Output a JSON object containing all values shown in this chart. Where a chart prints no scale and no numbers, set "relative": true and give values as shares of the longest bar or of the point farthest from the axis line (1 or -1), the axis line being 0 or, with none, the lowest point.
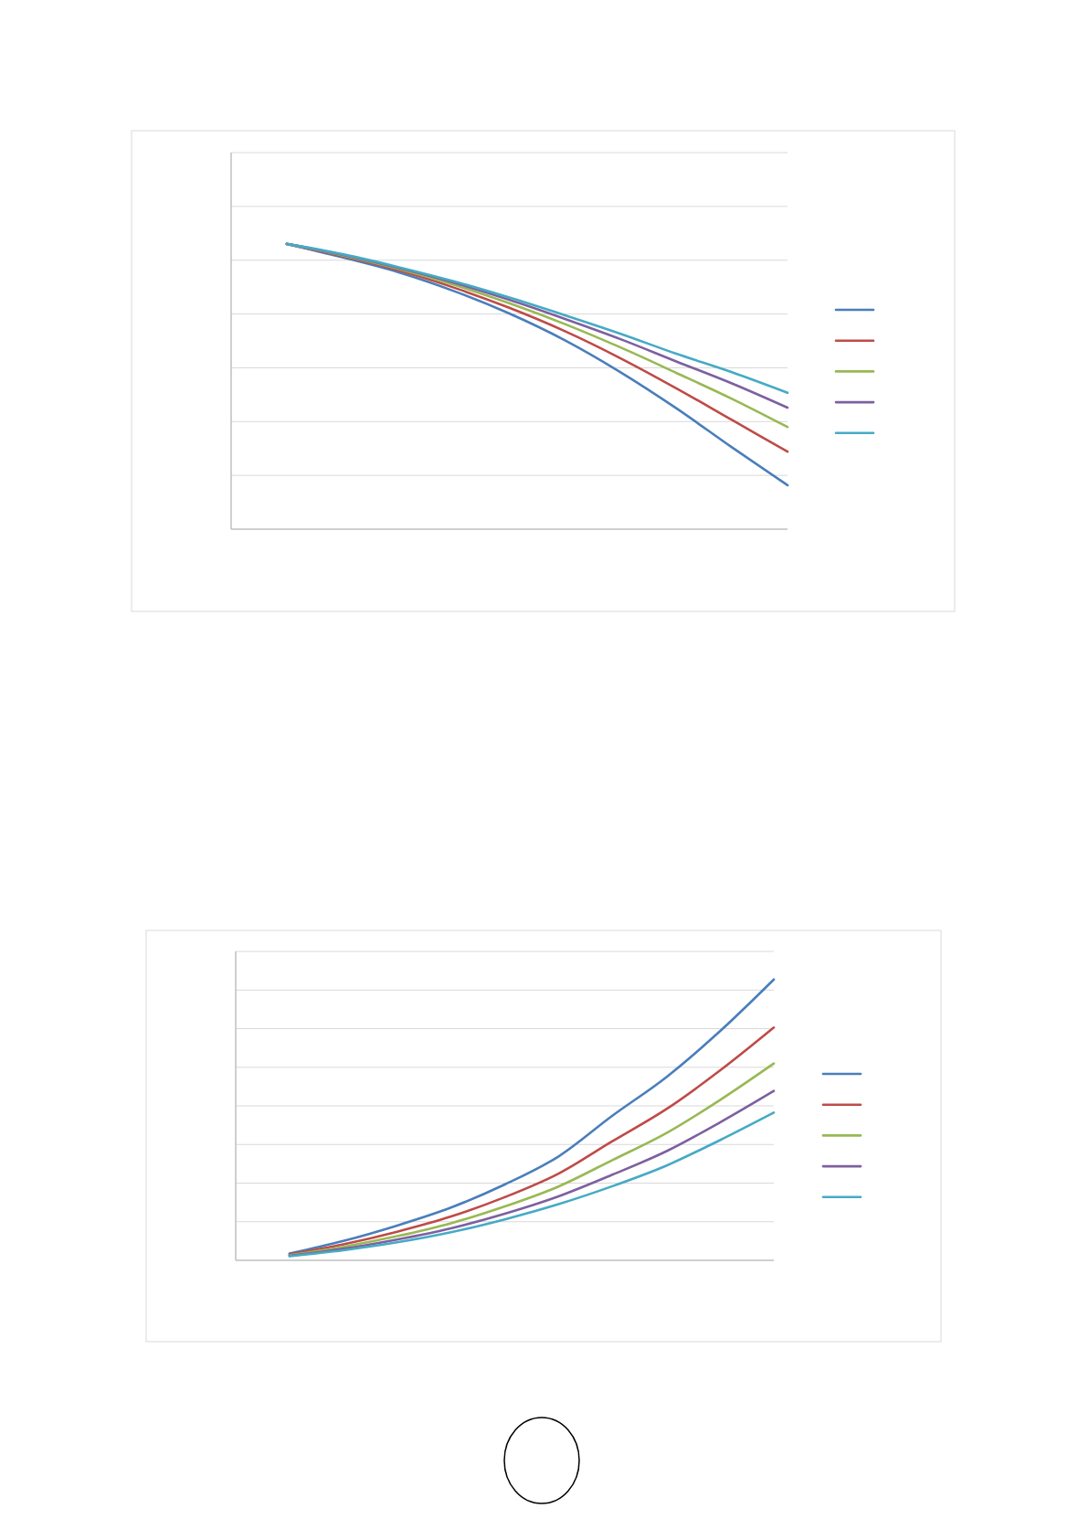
{
  "chart_data": [
    {
      "type": "line",
      "relative": true,
      "grid": "y",
      "categories": [
        null,
        null,
        null,
        null,
        null,
        null,
        null,
        null,
        null,
        null
      ],
      "series": [
        {
          "color": "#4a7ebb",
          "values": [
            1,
            0.953,
            0.901,
            0.835,
            0.756,
            0.662,
            0.55,
            0.424,
            0.287,
            0.154
          ]
        },
        {
          "color": "#be4b48",
          "values": [
            1,
            0.957,
            0.908,
            0.847,
            0.776,
            0.694,
            0.599,
            0.494,
            0.383,
            0.272
          ]
        },
        {
          "color": "#98b954",
          "values": [
            1,
            0.96,
            0.913,
            0.857,
            0.792,
            0.719,
            0.637,
            0.548,
            0.457,
            0.358
          ]
        },
        {
          "color": "#7d60a0",
          "values": [
            1,
            0.962,
            0.916,
            0.864,
            0.804,
            0.737,
            0.666,
            0.588,
            0.511,
            0.426
          ]
        },
        {
          "color": "#46aac5",
          "values": [
            1,
            0.964,
            0.919,
            0.869,
            0.812,
            0.75,
            0.685,
            0.615,
            0.55,
            0.478
          ]
        }
      ]
    },
    {
      "type": "line",
      "relative": true,
      "grid": "y",
      "categories": [
        null,
        null,
        null,
        null,
        null,
        null,
        null,
        null,
        null,
        null
      ],
      "series": [
        {
          "color": "#4a7ebb",
          "values": [
            0.024,
            0.069,
            0.124,
            0.188,
            0.27,
            0.37,
            0.515,
            0.652,
            0.816,
            1
          ]
        },
        {
          "color": "#be4b48",
          "values": [
            0.021,
            0.057,
            0.102,
            0.156,
            0.225,
            0.309,
            0.424,
            0.538,
            0.676,
            0.829
          ]
        },
        {
          "color": "#98b954",
          "values": [
            0.018,
            0.048,
            0.086,
            0.132,
            0.192,
            0.263,
            0.357,
            0.453,
            0.571,
            0.701
          ]
        },
        {
          "color": "#7d60a0",
          "values": [
            0.016,
            0.041,
            0.074,
            0.114,
            0.166,
            0.228,
            0.305,
            0.388,
            0.491,
            0.603
          ]
        },
        {
          "color": "#46aac5",
          "values": [
            0.015,
            0.036,
            0.064,
            0.1,
            0.146,
            0.2,
            0.264,
            0.337,
            0.428,
            0.526
          ]
        }
      ]
    }
  ]
}
